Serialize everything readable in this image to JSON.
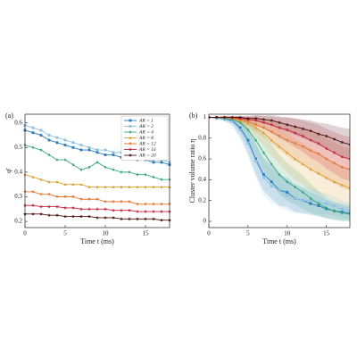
{
  "chart_data": [
    {
      "type": "line",
      "panel_label": "(a)",
      "xlabel": "Time t (ms)",
      "ylabel": "φ̄",
      "legend": "upper right",
      "x": [
        0,
        1,
        2,
        3,
        4,
        5,
        6,
        7,
        8,
        9,
        10,
        11,
        12,
        13,
        14,
        15,
        16,
        17,
        18
      ],
      "xlim": [
        0,
        18
      ],
      "ylim": [
        0.175,
        0.635
      ],
      "xticks": [
        0,
        5,
        10,
        15
      ],
      "yticks": [
        0.2,
        0.3,
        0.4,
        0.5,
        0.6
      ],
      "series": [
        {
          "name": "AR = 1",
          "color": "#2b7bb9",
          "marker": "square",
          "values": [
            0.57,
            0.56,
            0.55,
            0.53,
            0.52,
            0.51,
            0.5,
            0.49,
            0.49,
            0.48,
            0.47,
            0.47,
            0.46,
            0.46,
            0.45,
            0.45,
            0.44,
            0.44,
            0.43
          ]
        },
        {
          "name": "AR = 2",
          "color": "#8cc0e3",
          "marker": "square",
          "values": [
            0.59,
            0.58,
            0.57,
            0.55,
            0.54,
            0.53,
            0.52,
            0.51,
            0.5,
            0.49,
            0.49,
            0.48,
            0.48,
            0.47,
            0.46,
            0.46,
            0.45,
            0.45,
            0.44
          ]
        },
        {
          "name": "AR = 4",
          "color": "#3aa676",
          "marker": "diamond",
          "values": [
            0.51,
            0.5,
            0.49,
            0.47,
            0.45,
            0.45,
            0.43,
            0.41,
            0.42,
            0.44,
            0.42,
            0.41,
            0.4,
            0.4,
            0.39,
            0.39,
            0.38,
            0.37,
            0.37
          ]
        },
        {
          "name": "AR = 8",
          "color": "#d9a032",
          "marker": "triangle",
          "values": [
            0.39,
            0.38,
            0.37,
            0.36,
            0.36,
            0.35,
            0.35,
            0.35,
            0.34,
            0.34,
            0.34,
            0.34,
            0.34,
            0.34,
            0.34,
            0.34,
            0.34,
            0.34,
            0.34
          ]
        },
        {
          "name": "AR = 12",
          "color": "#e4742f",
          "marker": "triangle-down",
          "values": [
            0.32,
            0.32,
            0.31,
            0.31,
            0.3,
            0.3,
            0.3,
            0.29,
            0.29,
            0.29,
            0.28,
            0.28,
            0.28,
            0.28,
            0.27,
            0.27,
            0.27,
            0.27,
            0.27
          ]
        },
        {
          "name": "AR = 16",
          "color": "#c3243f",
          "marker": "star",
          "values": [
            0.265,
            0.265,
            0.26,
            0.26,
            0.26,
            0.255,
            0.255,
            0.25,
            0.25,
            0.25,
            0.25,
            0.245,
            0.245,
            0.245,
            0.24,
            0.24,
            0.24,
            0.24,
            0.24
          ]
        },
        {
          "name": "AR = 20",
          "color": "#4d1212",
          "marker": "star",
          "values": [
            0.23,
            0.23,
            0.23,
            0.225,
            0.225,
            0.22,
            0.22,
            0.22,
            0.22,
            0.215,
            0.215,
            0.215,
            0.21,
            0.21,
            0.21,
            0.21,
            0.21,
            0.205,
            0.205
          ]
        }
      ]
    },
    {
      "type": "line",
      "panel_label": "(b)",
      "xlabel": "Time t (ms)",
      "ylabel": "Cluster volume ratio η",
      "x": [
        0,
        1,
        2,
        3,
        4,
        5,
        6,
        7,
        8,
        9,
        10,
        11,
        12,
        13,
        14,
        15,
        16,
        17,
        18
      ],
      "xlim": [
        0,
        18
      ],
      "ylim": [
        -0.06,
        1.03
      ],
      "xticks": [
        0,
        5,
        10,
        15
      ],
      "yticks": [
        0,
        0.2,
        0.4,
        0.6,
        0.8,
        1
      ],
      "series": [
        {
          "name": "AR = 1",
          "color": "#2b7bb9",
          "marker": "square",
          "values": [
            1,
            1,
            0.99,
            0.97,
            0.9,
            0.78,
            0.6,
            0.45,
            0.38,
            0.3,
            0.28,
            0.22,
            0.2,
            0.17,
            0.15,
            0.12,
            0.1,
            0.09,
            0.08
          ],
          "errors": [
            0,
            0.01,
            0.02,
            0.04,
            0.08,
            0.12,
            0.15,
            0.16,
            0.16,
            0.15,
            0.14,
            0.13,
            0.12,
            0.11,
            0.1,
            0.09,
            0.08,
            0.08,
            0.07
          ]
        },
        {
          "name": "AR = 2",
          "color": "#8cc0e3",
          "marker": "square",
          "values": [
            1,
            0.99,
            0.98,
            0.96,
            0.88,
            0.75,
            0.58,
            0.42,
            0.34,
            0.3,
            0.25,
            0.22,
            0.2,
            0.2,
            0.18,
            0.17,
            0.15,
            0.12,
            0.1
          ],
          "errors": [
            0,
            0.01,
            0.02,
            0.05,
            0.09,
            0.13,
            0.16,
            0.17,
            0.17,
            0.16,
            0.15,
            0.14,
            0.13,
            0.12,
            0.11,
            0.1,
            0.09,
            0.08,
            0.08
          ]
        },
        {
          "name": "AR = 4",
          "color": "#3aa676",
          "marker": "diamond",
          "values": [
            1,
            1,
            0.99,
            0.98,
            0.95,
            0.88,
            0.78,
            0.66,
            0.55,
            0.45,
            0.38,
            0.33,
            0.28,
            0.22,
            0.17,
            0.13,
            0.1,
            0.08,
            0.07
          ],
          "errors": [
            0,
            0.01,
            0.02,
            0.03,
            0.06,
            0.1,
            0.14,
            0.17,
            0.19,
            0.19,
            0.18,
            0.17,
            0.16,
            0.14,
            0.12,
            0.1,
            0.09,
            0.08,
            0.07
          ]
        },
        {
          "name": "AR = 8",
          "color": "#d9a032",
          "marker": "triangle",
          "values": [
            1,
            1,
            1,
            0.99,
            0.97,
            0.94,
            0.9,
            0.85,
            0.78,
            0.72,
            0.66,
            0.6,
            0.55,
            0.5,
            0.46,
            0.42,
            0.38,
            0.35,
            0.32
          ],
          "errors": [
            0,
            0.01,
            0.01,
            0.02,
            0.04,
            0.06,
            0.09,
            0.12,
            0.15,
            0.17,
            0.19,
            0.2,
            0.2,
            0.2,
            0.2,
            0.19,
            0.19,
            0.18,
            0.18
          ]
        },
        {
          "name": "AR = 12",
          "color": "#e4742f",
          "marker": "triangle-down",
          "values": [
            1,
            1,
            1,
            0.99,
            0.98,
            0.96,
            0.93,
            0.9,
            0.86,
            0.82,
            0.78,
            0.75,
            0.72,
            0.68,
            0.65,
            0.6,
            0.56,
            0.52,
            0.5
          ],
          "errors": [
            0,
            0,
            0.01,
            0.02,
            0.03,
            0.05,
            0.07,
            0.09,
            0.11,
            0.13,
            0.15,
            0.17,
            0.18,
            0.19,
            0.2,
            0.2,
            0.2,
            0.2,
            0.2
          ]
        },
        {
          "name": "AR = 16",
          "color": "#c3243f",
          "marker": "star",
          "values": [
            1,
            1,
            1,
            1,
            0.99,
            0.98,
            0.97,
            0.95,
            0.93,
            0.9,
            0.88,
            0.85,
            0.82,
            0.78,
            0.75,
            0.7,
            0.66,
            0.62,
            0.6
          ],
          "errors": [
            0,
            0,
            0.01,
            0.01,
            0.02,
            0.03,
            0.05,
            0.06,
            0.08,
            0.1,
            0.12,
            0.14,
            0.15,
            0.17,
            0.18,
            0.19,
            0.2,
            0.21,
            0.21
          ]
        },
        {
          "name": "AR = 20",
          "color": "#4d1212",
          "marker": "star",
          "values": [
            1,
            1,
            1,
            1,
            1,
            0.99,
            0.99,
            0.98,
            0.97,
            0.95,
            0.93,
            0.91,
            0.89,
            0.87,
            0.84,
            0.82,
            0.79,
            0.76,
            0.74
          ],
          "errors": [
            0,
            0,
            0,
            0.01,
            0.01,
            0.02,
            0.03,
            0.04,
            0.05,
            0.06,
            0.07,
            0.08,
            0.09,
            0.1,
            0.11,
            0.12,
            0.13,
            0.14,
            0.15
          ]
        }
      ]
    }
  ]
}
